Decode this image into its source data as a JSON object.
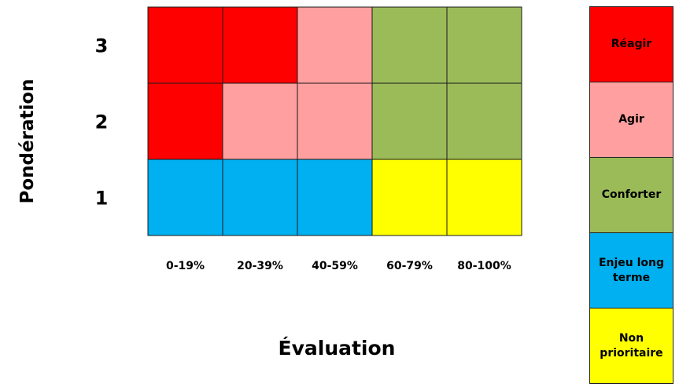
{
  "chart_data": {
    "type": "heatmap",
    "xlabel": "Évaluation",
    "ylabel": "Pondération",
    "x_categories": [
      "0-19%",
      "20-39%",
      "40-59%",
      "60-79%",
      "80-100%"
    ],
    "y_categories": [
      "3",
      "2",
      "1"
    ],
    "cells": [
      [
        "Réagir",
        "Réagir",
        "Agir",
        "Conforter",
        "Conforter"
      ],
      [
        "Réagir",
        "Agir",
        "Agir",
        "Conforter",
        "Conforter"
      ],
      [
        "Enjeu long terme",
        "Enjeu long terme",
        "Enjeu long terme",
        "Non prioritaire",
        "Non prioritaire"
      ]
    ],
    "legend": [
      {
        "label": "Réagir",
        "color": "#ff0000"
      },
      {
        "label": "Agir",
        "color": "#ff9f9f"
      },
      {
        "label": "Conforter",
        "color": "#9bbb59"
      },
      {
        "label": "Enjeu long terme",
        "color": "#00b0f0"
      },
      {
        "label": "Non prioritaire",
        "color": "#ffff00"
      }
    ],
    "legend_position": "right"
  }
}
